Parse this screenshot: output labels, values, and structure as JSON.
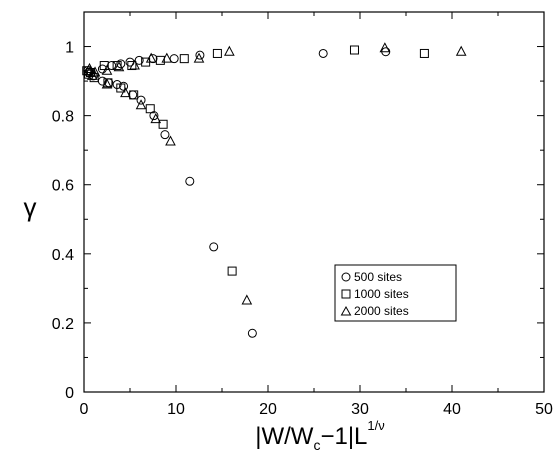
{
  "chart_data": {
    "type": "scatter",
    "xlabel_main": "|W/W",
    "xlabel_sub": "c",
    "xlabel_mid": "−1|L",
    "xlabel_sup": "1/ν",
    "ylabel": "γ",
    "xlim": [
      0,
      50
    ],
    "ylim": [
      0,
      1.1
    ],
    "x_ticks": [
      0,
      10,
      20,
      30,
      40,
      50
    ],
    "y_ticks": [
      0,
      0.2,
      0.4,
      0.6,
      0.8,
      1
    ],
    "x_tick_labels": [
      "0",
      "10",
      "20",
      "30",
      "40",
      "50"
    ],
    "y_tick_labels": [
      "0",
      "0.2",
      "0.4",
      "0.6",
      "0.8",
      "1"
    ],
    "grid": false,
    "legend_position": "lower-right",
    "series": [
      {
        "name": "500 sites",
        "marker": "circle",
        "points": [
          [
            0.4,
            0.93
          ],
          [
            0.8,
            0.925
          ],
          [
            2.0,
            0.935
          ],
          [
            3.0,
            0.945
          ],
          [
            4.0,
            0.95
          ],
          [
            5.0,
            0.955
          ],
          [
            6.0,
            0.96
          ],
          [
            7.5,
            0.965
          ],
          [
            9.8,
            0.965
          ],
          [
            12.6,
            0.975
          ],
          [
            26.0,
            0.98
          ],
          [
            32.8,
            0.985
          ],
          [
            0.5,
            0.925
          ],
          [
            1.0,
            0.915
          ],
          [
            2.0,
            0.9
          ],
          [
            2.7,
            0.895
          ],
          [
            3.6,
            0.89
          ],
          [
            4.3,
            0.885
          ],
          [
            5.3,
            0.86
          ],
          [
            6.2,
            0.845
          ],
          [
            7.6,
            0.8
          ],
          [
            8.8,
            0.745
          ],
          [
            11.5,
            0.61
          ],
          [
            14.1,
            0.42
          ],
          [
            18.3,
            0.17
          ]
        ]
      },
      {
        "name": "1000 sites",
        "marker": "square",
        "points": [
          [
            0.3,
            0.93
          ],
          [
            0.7,
            0.925
          ],
          [
            2.2,
            0.945
          ],
          [
            3.6,
            0.945
          ],
          [
            5.2,
            0.945
          ],
          [
            6.7,
            0.955
          ],
          [
            8.3,
            0.96
          ],
          [
            10.9,
            0.965
          ],
          [
            14.5,
            0.98
          ],
          [
            29.4,
            0.99
          ],
          [
            37.0,
            0.98
          ],
          [
            0.5,
            0.92
          ],
          [
            1.1,
            0.91
          ],
          [
            2.6,
            0.895
          ],
          [
            4.0,
            0.88
          ],
          [
            5.4,
            0.86
          ],
          [
            7.2,
            0.82
          ],
          [
            8.6,
            0.775
          ],
          [
            16.1,
            0.35
          ]
        ]
      },
      {
        "name": "2000 sites",
        "marker": "triangle",
        "points": [
          [
            0.6,
            0.935
          ],
          [
            1.2,
            0.925
          ],
          [
            2.5,
            0.93
          ],
          [
            3.8,
            0.94
          ],
          [
            5.5,
            0.945
          ],
          [
            7.3,
            0.965
          ],
          [
            9.0,
            0.965
          ],
          [
            12.5,
            0.965
          ],
          [
            15.8,
            0.985
          ],
          [
            32.7,
            0.995
          ],
          [
            41.0,
            0.985
          ],
          [
            0.9,
            0.915
          ],
          [
            2.5,
            0.89
          ],
          [
            4.5,
            0.865
          ],
          [
            6.2,
            0.83
          ],
          [
            7.8,
            0.79
          ],
          [
            9.4,
            0.725
          ],
          [
            17.7,
            0.265
          ]
        ]
      }
    ]
  }
}
